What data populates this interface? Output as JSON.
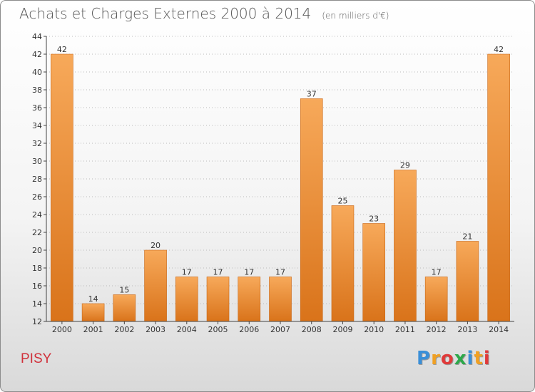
{
  "header": {
    "title": "Achats et Charges Externes 2000 à 2014",
    "unit": "(en milliers d'€)"
  },
  "commune": "PISY",
  "logo": {
    "letters": [
      "P",
      "r",
      "o",
      "x",
      "i",
      "t",
      "i"
    ],
    "colors": [
      "#3a8fd8",
      "#f0a023",
      "#e03a3a",
      "#2da84a",
      "#3a8fd8",
      "#f0a023",
      "#e03a3a"
    ]
  },
  "colors": {
    "bar_light": "#f7a95a",
    "bar_dark": "#d9731a",
    "bar_edge": "#c86614",
    "axis": "#444444",
    "grid": "#bbbbbb",
    "tick_text": "#333333"
  },
  "chart_data": {
    "type": "bar",
    "title": "Achats et Charges Externes 2000 à 2014",
    "xlabel": "",
    "ylabel": "",
    "categories": [
      "2000",
      "2001",
      "2002",
      "2003",
      "2004",
      "2005",
      "2006",
      "2007",
      "2008",
      "2009",
      "2010",
      "2011",
      "2012",
      "2013",
      "2014"
    ],
    "values": [
      42,
      14,
      15,
      20,
      17,
      17,
      17,
      17,
      37,
      25,
      23,
      29,
      17,
      21,
      42
    ],
    "data_labels": [
      "42",
      "14",
      "15",
      "20",
      "17",
      "17",
      "17",
      "17",
      "37",
      "25",
      "23",
      "29",
      "17",
      "21",
      "42"
    ],
    "ylim": [
      12,
      44
    ],
    "yticks": [
      12,
      14,
      16,
      18,
      20,
      22,
      24,
      26,
      28,
      30,
      32,
      34,
      36,
      38,
      40,
      42,
      44
    ],
    "ytick_labels": [
      "12",
      "14",
      "16",
      "18",
      "20",
      "22",
      "24",
      "26",
      "28",
      "30",
      "32",
      "34",
      "36",
      "38",
      "40",
      "42",
      "44"
    ],
    "grid": true
  }
}
